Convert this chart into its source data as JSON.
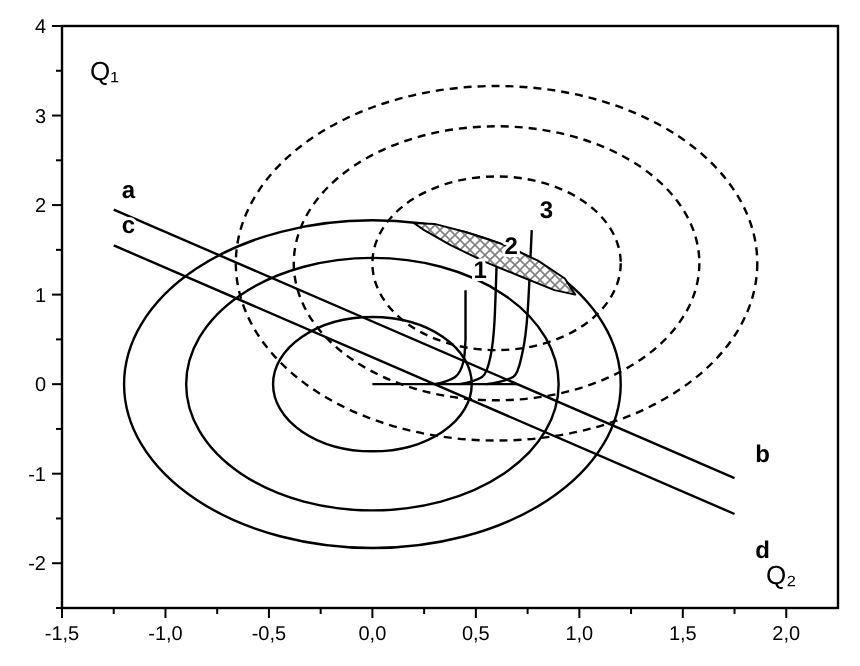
{
  "chart_data": {
    "type": "line",
    "xlabel": "Q₂",
    "ylabel": "Q₁",
    "xlim": [
      -1.5,
      2.25
    ],
    "ylim": [
      -2.5,
      4
    ],
    "xticks": [
      {
        "value": -1.5,
        "label": "-1,5"
      },
      {
        "value": -1.25,
        "label": null
      },
      {
        "value": -1,
        "label": "-1,0"
      },
      {
        "value": -0.75,
        "label": null
      },
      {
        "value": -0.5,
        "label": "-0,5"
      },
      {
        "value": -0.25,
        "label": null
      },
      {
        "value": 0,
        "label": "0,0"
      },
      {
        "value": 0.25,
        "label": null
      },
      {
        "value": 0.5,
        "label": "0,5"
      },
      {
        "value": 0.75,
        "label": null
      },
      {
        "value": 1,
        "label": "1,0"
      },
      {
        "value": 1.25,
        "label": null
      },
      {
        "value": 1.5,
        "label": "1,5"
      },
      {
        "value": 1.75,
        "label": null
      },
      {
        "value": 2,
        "label": "2,0"
      }
    ],
    "yticks": [
      {
        "value": -2.5,
        "label": null
      },
      -2,
      {
        "value": -1.5,
        "label": null
      },
      -1,
      {
        "value": -0.5,
        "label": null
      },
      0,
      {
        "value": 0.5,
        "label": null
      },
      1,
      {
        "value": 1.5,
        "label": null
      },
      2,
      {
        "value": 2.5,
        "label": null
      },
      3,
      {
        "value": 3.5,
        "label": null
      },
      4
    ],
    "grid": false,
    "series": [
      {
        "color": "#000000",
        "x": [
          -1.25,
          1.75
        ],
        "values": [
          1.95,
          -1.05
        ]
      },
      {
        "color": "#000000",
        "x": [
          -1.25,
          1.75
        ],
        "values": [
          1.55,
          -1.45
        ]
      },
      {
        "color": "#000000",
        "x": [
          0,
          0.7
        ],
        "values": [
          0,
          0
        ]
      },
      {
        "color": "#000000",
        "x": [
          0.3,
          0.4,
          0.44,
          0.45,
          0.45
        ],
        "values": [
          0,
          0.08,
          0.25,
          0.5,
          1.05
        ]
      },
      {
        "color": "#000000",
        "x": [
          0.42,
          0.53,
          0.57,
          0.59,
          0.6
        ],
        "values": [
          0,
          0.08,
          0.3,
          0.7,
          1.32
        ]
      },
      {
        "color": "#000000",
        "x": [
          0.55,
          0.68,
          0.72,
          0.75,
          0.77
        ],
        "values": [
          0,
          0.08,
          0.3,
          0.8,
          1.72
        ]
      },
      {
        "type": "area",
        "color": "#000000",
        "x": [
          0.2,
          0.3,
          0.45,
          0.62,
          0.8,
          0.93,
          0.98,
          0.88,
          0.72,
          0.55,
          0.38,
          0.25,
          0.2
        ],
        "values": [
          1.8,
          1.79,
          1.7,
          1.57,
          1.38,
          1.18,
          1.0,
          1.05,
          1.2,
          1.36,
          1.55,
          1.72,
          1.8
        ]
      }
    ],
    "annotations": [
      {
        "text": "a",
        "x": -1.25,
        "y": 1.95
      },
      {
        "text": "c",
        "x": -1.25,
        "y": 1.55
      },
      {
        "text": "b",
        "x": 1.75,
        "y": -1.05
      },
      {
        "text": "d",
        "x": 1.75,
        "y": -1.45
      },
      {
        "text": "1",
        "x": 0.45,
        "y": 1.05
      },
      {
        "text": "2",
        "x": 0.6,
        "y": 1.32
      },
      {
        "text": "3",
        "x": 0.77,
        "y": 1.72
      }
    ]
  }
}
